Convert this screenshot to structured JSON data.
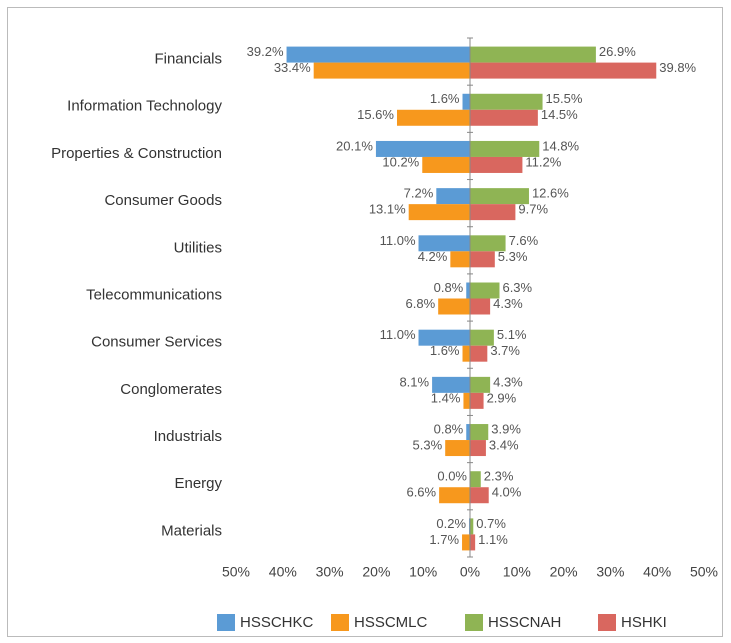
{
  "chart_data": {
    "type": "diverging-bar",
    "categories": [
      "Financials",
      "Information Technology",
      "Properties & Construction",
      "Consumer Goods",
      "Utilities",
      "Telecommunications",
      "Consumer Services",
      "Conglomerates",
      "Industrials",
      "Energy",
      "Materials"
    ],
    "series": [
      {
        "name": "HSSCHKC",
        "color": "#5b9bd5",
        "values": [
          -39.2,
          -1.6,
          -20.1,
          -7.2,
          -11.0,
          -0.8,
          -11.0,
          -8.1,
          -0.8,
          0,
          -0.2
        ],
        "value_labels": [
          "39.2%",
          "1.6%",
          "20.1%",
          "7.2%",
          "11.0%",
          "0.8%",
          "11.0%",
          "8.1%",
          "0.8%",
          "0.0%",
          "0.2%"
        ]
      },
      {
        "name": "HSSCMLC",
        "color": "#f7981d",
        "values": [
          -33.4,
          -15.6,
          -10.2,
          -13.1,
          -4.2,
          -6.8,
          -1.6,
          -1.4,
          -5.3,
          -6.6,
          -1.7
        ],
        "value_labels": [
          "33.4%",
          "15.6%",
          "10.2%",
          "13.1%",
          "4.2%",
          "6.8%",
          "1.6%",
          "1.4%",
          "5.3%",
          "6.6%",
          "1.7%"
        ]
      },
      {
        "name": "HSSCNAH",
        "color": "#8fb454",
        "values": [
          26.9,
          15.5,
          14.8,
          12.6,
          7.6,
          6.3,
          5.1,
          4.3,
          3.9,
          2.3,
          0.7
        ],
        "value_labels": [
          "26.9%",
          "15.5%",
          "14.8%",
          "12.6%",
          "7.6%",
          "6.3%",
          "5.1%",
          "4.3%",
          "3.9%",
          "2.3%",
          "0.7%"
        ]
      },
      {
        "name": "HSHKI",
        "color": "#d9675f",
        "values": [
          39.8,
          14.5,
          11.2,
          9.7,
          5.3,
          4.3,
          3.7,
          2.9,
          3.4,
          4.0,
          1.1
        ],
        "value_labels": [
          "39.8%",
          "14.5%",
          "11.2%",
          "9.7%",
          "5.3%",
          "4.3%",
          "3.7%",
          "2.9%",
          "3.4%",
          "4.0%",
          "1.1%"
        ]
      }
    ],
    "xlim": [
      -50,
      50
    ],
    "xticks": [
      {
        "value": -50,
        "label": "50%"
      },
      {
        "value": -40,
        "label": "40%"
      },
      {
        "value": -30,
        "label": "30%"
      },
      {
        "value": -20,
        "label": "20%"
      },
      {
        "value": -10,
        "label": "10%"
      },
      {
        "value": 0,
        "label": "0%"
      },
      {
        "value": 10,
        "label": "10%"
      },
      {
        "value": 20,
        "label": "20%"
      },
      {
        "value": 30,
        "label": "30%"
      },
      {
        "value": 40,
        "label": "40%"
      },
      {
        "value": 50,
        "label": "50%"
      }
    ],
    "grid": false
  }
}
